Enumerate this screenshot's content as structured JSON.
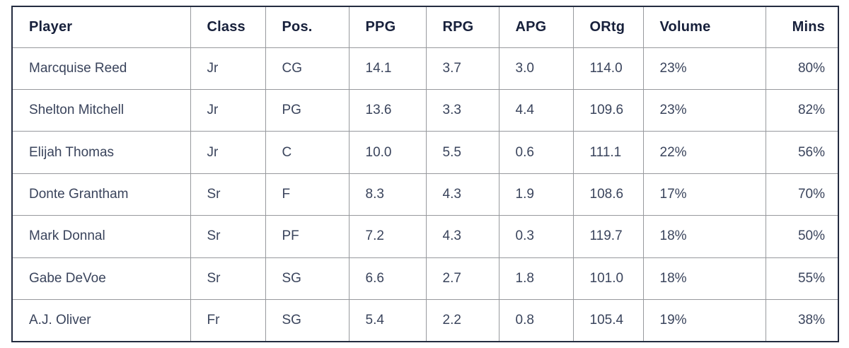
{
  "chart_data": {
    "type": "table",
    "columns": [
      "Player",
      "Class",
      "Pos.",
      "PPG",
      "RPG",
      "APG",
      "ORtg",
      "Volume",
      "Mins"
    ],
    "rows": [
      [
        "Marcquise Reed",
        "Jr",
        "CG",
        "14.1",
        "3.7",
        "3.0",
        "114.0",
        "23%",
        "80%"
      ],
      [
        "Shelton Mitchell",
        "Jr",
        "PG",
        "13.6",
        "3.3",
        "4.4",
        "109.6",
        "23%",
        "82%"
      ],
      [
        "Elijah Thomas",
        "Jr",
        "C",
        "10.0",
        "5.5",
        "0.6",
        "111.1",
        "22%",
        "56%"
      ],
      [
        "Donte Grantham",
        "Sr",
        "F",
        "8.3",
        "4.3",
        "1.9",
        "108.6",
        "17%",
        "70%"
      ],
      [
        "Mark Donnal",
        "Sr",
        "PF",
        "7.2",
        "4.3",
        "0.3",
        "119.7",
        "18%",
        "50%"
      ],
      [
        "Gabe DeVoe",
        "Sr",
        "SG",
        "6.6",
        "2.7",
        "1.8",
        "101.0",
        "18%",
        "55%"
      ],
      [
        "A.J. Oliver",
        "Fr",
        "SG",
        "5.4",
        "2.2",
        "0.8",
        "105.4",
        "19%",
        "38%"
      ]
    ],
    "layout": {
      "grid": "full-borders",
      "mins_column_align": "right",
      "other_columns_align": "left"
    }
  },
  "colors": {
    "outer_border": "#242c40",
    "grid_line": "#97999d",
    "header_text": "#17203b",
    "body_text": "#3a445c",
    "background": "#ffffff"
  }
}
